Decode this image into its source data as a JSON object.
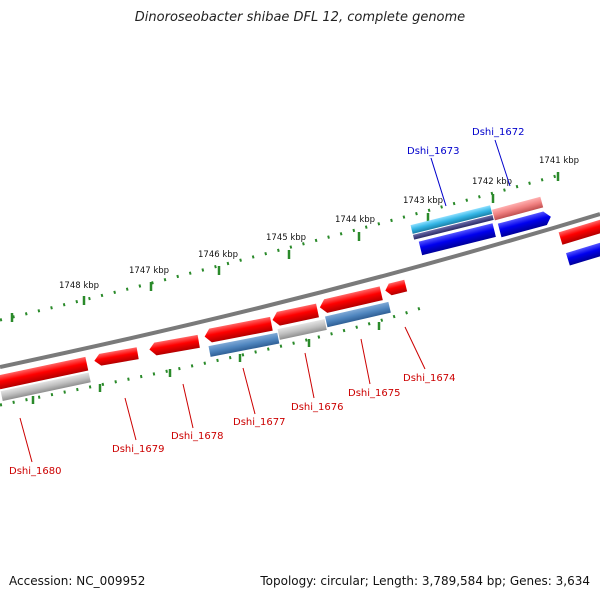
{
  "title": "Dinoroseobacter shibae DFL 12, complete genome",
  "footer": {
    "accession": "Accession: NC_009952",
    "summary": "Topology: circular; Length: 3,789,584 bp; Genes: 3,634"
  },
  "colors": {
    "backbone": "#7a7a7a",
    "tick": "#2a8a2a",
    "reverse_gene": "#ff0000",
    "reverse_gene_label": "#cc0000",
    "forward_gene": "#0000ee",
    "forward_gene_label": "#0000cc",
    "pseudo_gene": "#c0c0c0",
    "rna_strand_reverse": "#4f86bf",
    "rna_strand_forward": "#33b5e5",
    "highlight_pink": "#f08080"
  },
  "scale_labels": [
    "1748 kbp",
    "1747 kbp",
    "1746 kbp",
    "1745 kbp",
    "1744 kbp",
    "1743 kbp",
    "1742 kbp",
    "1741 kbp"
  ],
  "gene_labels_reverse": [
    "Dshi_1680",
    "Dshi_1679",
    "Dshi_1678",
    "Dshi_1677",
    "Dshi_1676",
    "Dshi_1675",
    "Dshi_1674"
  ],
  "gene_labels_forward": [
    "Dshi_1673",
    "Dshi_1672"
  ]
}
